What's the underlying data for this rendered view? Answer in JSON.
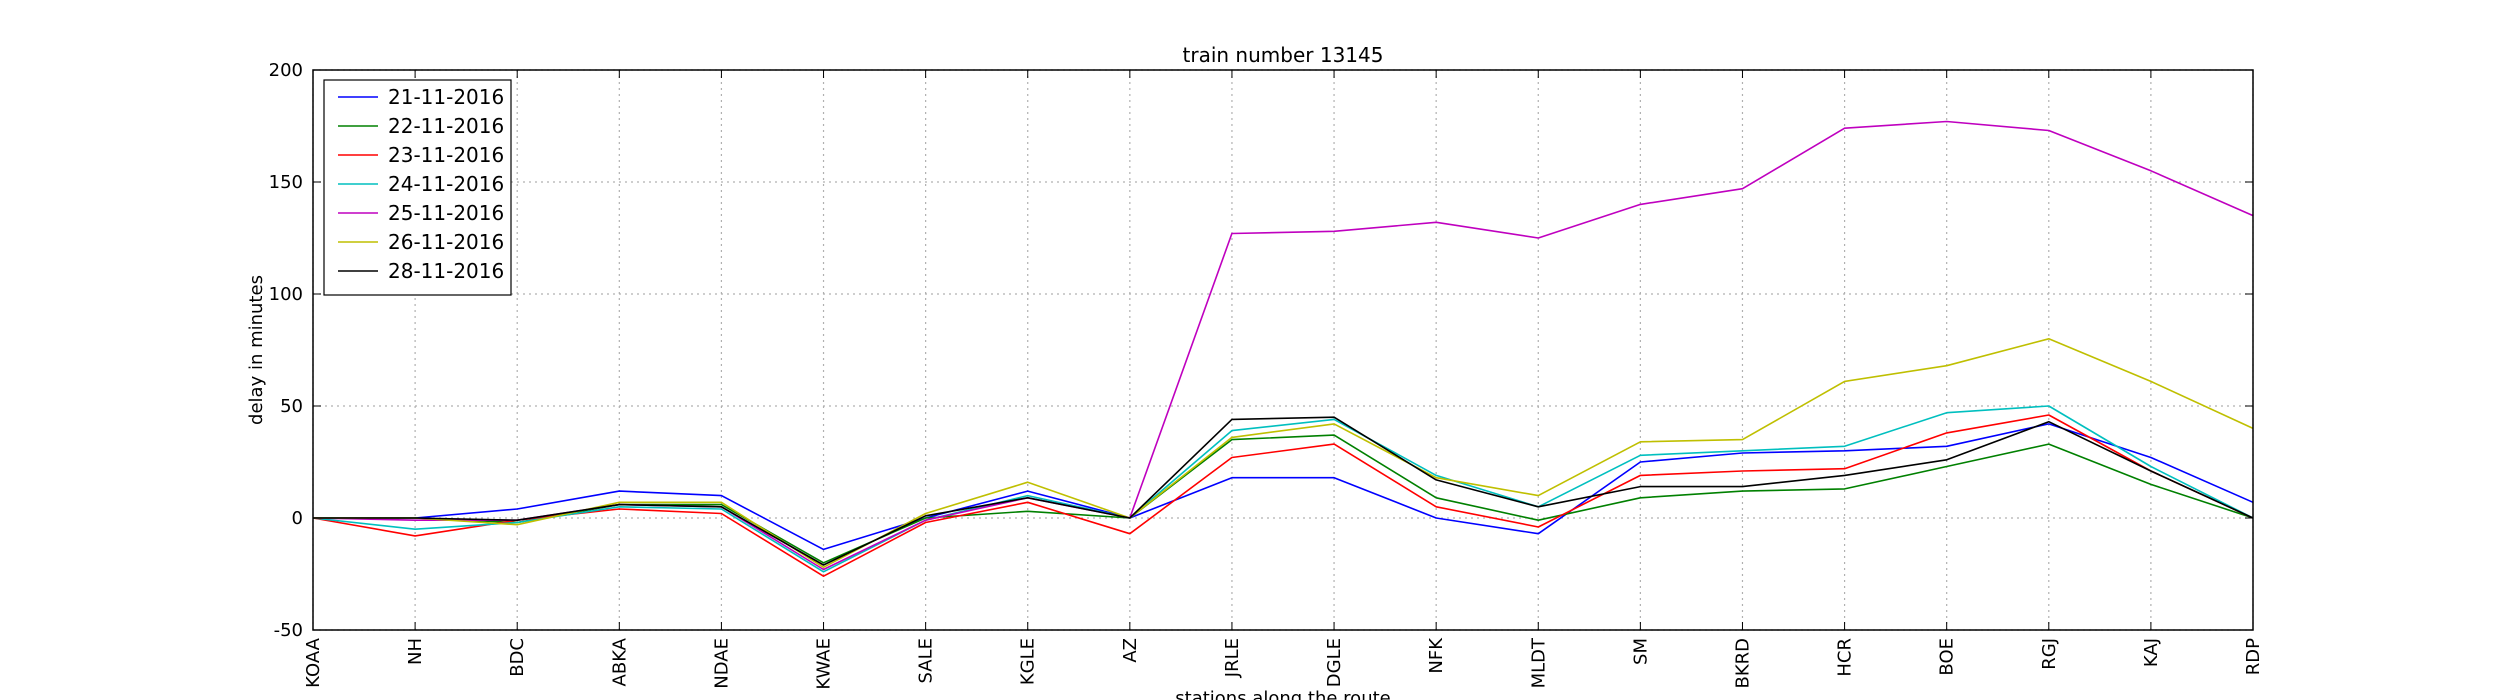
{
  "chart_data": {
    "type": "line",
    "title": "train number 13145",
    "xlabel": "stations along the route",
    "ylabel": "delay in minutes",
    "ylim": [
      -50,
      200
    ],
    "yticks": [
      -50,
      0,
      50,
      100,
      150,
      200
    ],
    "grid": true,
    "legend_position": "top-left",
    "categories": [
      "KOAA",
      "NH",
      "BDC",
      "ABKA",
      "NDAE",
      "KWAE",
      "SALE",
      "KGLE",
      "AZ",
      "JRLE",
      "DGLE",
      "NFK",
      "MLDT",
      "SM",
      "BKRD",
      "HCR",
      "BOE",
      "RGJ",
      "KAJ",
      "RDP"
    ],
    "series": [
      {
        "name": "21-11-2016",
        "color": "#0000ff",
        "values": [
          0,
          0,
          4,
          12,
          10,
          -14,
          0,
          12,
          0,
          18,
          18,
          0,
          -7,
          25,
          29,
          30,
          32,
          42,
          27,
          7
        ]
      },
      {
        "name": "22-11-2016",
        "color": "#008000",
        "values": [
          0,
          0,
          -2,
          6,
          6,
          -20,
          0,
          3,
          0,
          35,
          37,
          9,
          -1,
          9,
          12,
          13,
          23,
          33,
          15,
          0
        ]
      },
      {
        "name": "23-11-2016",
        "color": "#ff0000",
        "values": [
          0,
          -8,
          -1,
          4,
          2,
          -26,
          -2,
          7,
          -7,
          27,
          33,
          5,
          -4,
          19,
          21,
          22,
          38,
          46,
          21,
          0
        ]
      },
      {
        "name": "24-11-2016",
        "color": "#00bfbf",
        "values": [
          0,
          -5,
          -2,
          5,
          4,
          -24,
          -1,
          10,
          0,
          39,
          44,
          19,
          5,
          28,
          30,
          32,
          47,
          50,
          23,
          0
        ]
      },
      {
        "name": "25-11-2016",
        "color": "#bf00bf",
        "values": [
          0,
          -1,
          -1,
          6,
          5,
          -23,
          -1,
          9,
          0,
          127,
          128,
          132,
          125,
          140,
          147,
          174,
          177,
          173,
          155,
          135
        ]
      },
      {
        "name": "26-11-2016",
        "color": "#bfbf00",
        "values": [
          0,
          0,
          -3,
          7,
          7,
          -22,
          2,
          16,
          0,
          36,
          42,
          18,
          10,
          34,
          35,
          61,
          68,
          80,
          61,
          40
        ]
      },
      {
        "name": "28-11-2016",
        "color": "#000000",
        "values": [
          0,
          0,
          -1,
          6,
          5,
          -21,
          1,
          9,
          0,
          44,
          45,
          17,
          5,
          14,
          14,
          19,
          26,
          43,
          21,
          0
        ]
      }
    ]
  }
}
